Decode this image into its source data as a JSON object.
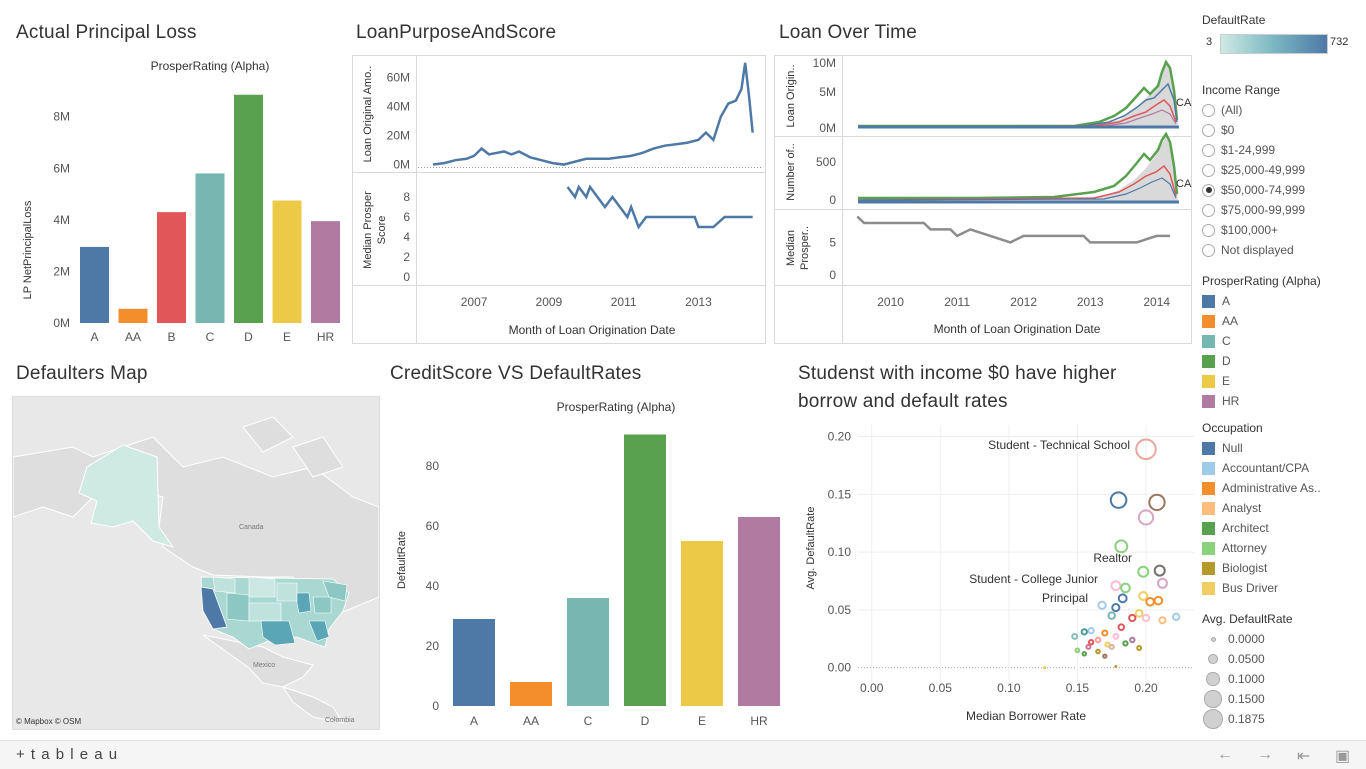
{
  "titles": {
    "principal_loss": "Actual Principal Loss",
    "loan_purpose": "LoanPurposeAndScore",
    "loan_time": "Loan Over Time",
    "map": "Defaulters Map",
    "credit_score": "CreditScore VS DefaultRates",
    "students_line1": "Studenst with income $0  have higher",
    "students_line2": "borrow and default rates"
  },
  "principal_loss_chart": {
    "header": "ProsperRating (Alpha)",
    "ylabel": "LP NetPrincipalLoss",
    "yticks": [
      "0M",
      "2M",
      "4M",
      "6M",
      "8M"
    ]
  },
  "loan_purpose_chart": {
    "ylabel_top": "Loan Original Amo..",
    "ylabel_bottom1": "Median Prosper",
    "ylabel_bottom2": "Score",
    "yticks_top": [
      "0M",
      "20M",
      "40M",
      "60M"
    ],
    "yticks_bottom": [
      "0",
      "2",
      "4",
      "6",
      "8"
    ],
    "xticks": [
      "2007",
      "2009",
      "2011",
      "2013"
    ],
    "xlabel": "Month of Loan Origination Date"
  },
  "loan_time_chart": {
    "ylabel_top": "Loan Origin..",
    "ylabel_mid": "Number of..",
    "ylabel_bot1": "Median",
    "ylabel_bot2": "Prosper..",
    "yticks_top": [
      "0M",
      "5M",
      "10M"
    ],
    "yticks_mid": [
      "0",
      "500"
    ],
    "yticks_bot": [
      "0",
      "5"
    ],
    "xticks": [
      "2010",
      "2011",
      "2012",
      "2013",
      "2014"
    ],
    "xlabel": "Month of Loan Origination Date",
    "label_ca": "CA"
  },
  "map": {
    "label_canada": "Canada",
    "label_mexico": "Mexico",
    "label_colombia": "Colombia",
    "credit": "© Mapbox  © OSM"
  },
  "credit_chart": {
    "header": "ProsperRating (Alpha)",
    "ylabel": "DefaultRate",
    "yticks": [
      "0",
      "20",
      "40",
      "60",
      "80"
    ]
  },
  "student_chart": {
    "ylabel": "Avg. DefaultRate",
    "xlabel": "Median Borrower Rate",
    "yticks": [
      "0.00",
      "0.05",
      "0.10",
      "0.15",
      "0.20"
    ],
    "xticks": [
      "0.00",
      "0.05",
      "0.10",
      "0.15",
      "0.20"
    ],
    "annotations": [
      "Student - Technical School",
      "Realtor",
      "Student - College Junior",
      "Principal"
    ]
  },
  "legend": {
    "defaultrate_title": "DefaultRate",
    "defaultrate_min": "3",
    "defaultrate_max": "732",
    "income_title": "Income Range",
    "income_options": [
      "(All)",
      "$0",
      "$1-24,999",
      "$25,000-49,999",
      "$50,000-74,999",
      "$75,000-99,999",
      "$100,000+",
      "Not displayed"
    ],
    "income_selected": "$50,000-74,999",
    "rating_title": "ProsperRating (Alpha)",
    "rating_items": [
      {
        "label": "A",
        "color": "#4e79a7"
      },
      {
        "label": "AA",
        "color": "#f28e2b"
      },
      {
        "label": "C",
        "color": "#76b7b2"
      },
      {
        "label": "D",
        "color": "#59a14f"
      },
      {
        "label": "E",
        "color": "#edc948"
      },
      {
        "label": "HR",
        "color": "#b07aa1"
      }
    ],
    "occupation_title": "Occupation",
    "occupation_items": [
      {
        "label": "Null",
        "color": "#4e79a7"
      },
      {
        "label": "Accountant/CPA",
        "color": "#a0cbe8"
      },
      {
        "label": "Administrative As..",
        "color": "#f28e2b"
      },
      {
        "label": "Analyst",
        "color": "#ffbe7d"
      },
      {
        "label": "Architect",
        "color": "#59a14f"
      },
      {
        "label": "Attorney",
        "color": "#8cd17d"
      },
      {
        "label": "Biologist",
        "color": "#b6992d"
      },
      {
        "label": "Bus Driver",
        "color": "#f1ce63"
      }
    ],
    "size_title": "Avg. DefaultRate",
    "size_items": [
      "0.0000",
      "0.0500",
      "0.1000",
      "0.1500",
      "0.1875"
    ]
  },
  "footer": {
    "brand": "+ t a b l e a u"
  },
  "chart_data": [
    {
      "type": "bar",
      "title": "Actual Principal Loss",
      "xlabel": "ProsperRating (Alpha)",
      "ylabel": "LP NetPrincipalLoss",
      "categories": [
        "A",
        "AA",
        "B",
        "C",
        "D",
        "E",
        "HR"
      ],
      "values": [
        2.95,
        0.55,
        4.3,
        5.8,
        8.85,
        4.75,
        3.95
      ],
      "colors": [
        "#4e79a7",
        "#f28e2b",
        "#e15759",
        "#76b7b2",
        "#59a14f",
        "#edc948",
        "#b07aa1"
      ],
      "ylim": [
        0,
        9.5
      ],
      "unit": "M"
    },
    {
      "type": "bar",
      "title": "CreditScore VS DefaultRates",
      "xlabel": "ProsperRating (Alpha)",
      "ylabel": "DefaultRate",
      "categories": [
        "A",
        "AA",
        "C",
        "D",
        "E",
        "HR"
      ],
      "values": [
        29,
        8,
        36,
        90.5,
        55,
        63
      ],
      "colors": [
        "#4e79a7",
        "#f28e2b",
        "#76b7b2",
        "#59a14f",
        "#edc948",
        "#b07aa1"
      ],
      "ylim": [
        0,
        92
      ]
    },
    {
      "type": "line",
      "title": "LoanPurposeAndScore",
      "xlabel": "Month of Loan Origination Date",
      "ylabel": "Loan Original Amo..",
      "x": [
        2005.9,
        2006.2,
        2006.5,
        2006.8,
        2007.0,
        2007.2,
        2007.4,
        2007.6,
        2007.8,
        2008.0,
        2008.2,
        2008.5,
        2008.8,
        2009.1,
        2009.4,
        2009.7,
        2010.0,
        2010.3,
        2010.6,
        2010.9,
        2011.2,
        2011.5,
        2011.8,
        2012.1,
        2012.4,
        2012.7,
        2013.0,
        2013.2,
        2013.4,
        2013.6,
        2013.8,
        2014.0,
        2014.15,
        2014.25,
        2014.35,
        2014.45
      ],
      "values": [
        0,
        1,
        3,
        4,
        6,
        11,
        7,
        8,
        9,
        7,
        9,
        5,
        3,
        1,
        0,
        2,
        4,
        4,
        4,
        5,
        6,
        8,
        11,
        13,
        14,
        15,
        17,
        22,
        17,
        33,
        42,
        44,
        52,
        70,
        48,
        22
      ],
      "ylim": [
        -1,
        72
      ]
    },
    {
      "type": "line",
      "title": "LoanPurposeAndScore",
      "ylabel": "Median Prosper Score",
      "x": [
        2009.5,
        2009.7,
        2009.8,
        2010.0,
        2010.1,
        2010.3,
        2010.5,
        2010.7,
        2010.9,
        2011.1,
        2011.2,
        2011.4,
        2011.6,
        2011.8,
        2012.0,
        2012.3,
        2012.6,
        2012.9,
        2013.0,
        2013.4,
        2013.7,
        2014.0,
        2014.2,
        2014.45
      ],
      "values": [
        9,
        8,
        9,
        8,
        9,
        8,
        7,
        8,
        7,
        6,
        7,
        5,
        6,
        6,
        6,
        6,
        6,
        6,
        5,
        5,
        6,
        6,
        6,
        6
      ],
      "ylim": [
        -0.5,
        9.5
      ]
    },
    {
      "type": "line",
      "title": "Loan Over Time",
      "ylabel": "Median Prosper..",
      "x": [
        2009.5,
        2009.6,
        2009.8,
        2010.0,
        2010.2,
        2010.5,
        2010.6,
        2010.9,
        2011.0,
        2011.2,
        2011.5,
        2011.8,
        2012.0,
        2012.3,
        2012.6,
        2012.9,
        2013.0,
        2013.4,
        2013.7,
        2014.0,
        2014.2
      ],
      "values": [
        9,
        8,
        8,
        8,
        8,
        8,
        7,
        7,
        6,
        7,
        6,
        5,
        6,
        6,
        6,
        6,
        5,
        5,
        5,
        6,
        6
      ],
      "ylim": [
        -0.5,
        10
      ]
    },
    {
      "type": "scatter",
      "title": "Studenst with income $0  have higher borrow and default rates",
      "xlabel": "Median Borrower Rate",
      "ylabel": "Avg. DefaultRate",
      "xlim": [
        -0.01,
        0.235
      ],
      "ylim": [
        -0.015,
        0.21
      ],
      "points": [
        {
          "x": 0.2,
          "y": 0.189,
          "s": 0.189,
          "c": "#e8a89e"
        },
        {
          "x": 0.18,
          "y": 0.145,
          "s": 0.145,
          "c": "#4e79a7"
        },
        {
          "x": 0.208,
          "y": 0.143,
          "s": 0.143,
          "c": "#9c755f"
        },
        {
          "x": 0.2,
          "y": 0.13,
          "s": 0.13,
          "c": "#d4a6c8"
        },
        {
          "x": 0.182,
          "y": 0.105,
          "s": 0.105,
          "c": "#8cd17d"
        },
        {
          "x": 0.21,
          "y": 0.084,
          "s": 0.084,
          "c": "#79706e"
        },
        {
          "x": 0.198,
          "y": 0.083,
          "s": 0.083,
          "c": "#8cd17d"
        },
        {
          "x": 0.178,
          "y": 0.071,
          "s": 0.071,
          "c": "#fabfd2"
        },
        {
          "x": 0.185,
          "y": 0.069,
          "s": 0.069,
          "c": "#8cd17d"
        },
        {
          "x": 0.212,
          "y": 0.073,
          "s": 0.073,
          "c": "#d4a6c8"
        },
        {
          "x": 0.198,
          "y": 0.062,
          "s": 0.062,
          "c": "#f1ce63"
        },
        {
          "x": 0.203,
          "y": 0.057,
          "s": 0.057,
          "c": "#f28e2b"
        },
        {
          "x": 0.209,
          "y": 0.058,
          "s": 0.058,
          "c": "#f28e2b"
        },
        {
          "x": 0.183,
          "y": 0.06,
          "s": 0.06,
          "c": "#4e79a7"
        },
        {
          "x": 0.178,
          "y": 0.052,
          "s": 0.052,
          "c": "#4e79a7"
        },
        {
          "x": 0.168,
          "y": 0.054,
          "s": 0.054,
          "c": "#a0cbe8"
        },
        {
          "x": 0.19,
          "y": 0.043,
          "s": 0.043,
          "c": "#e15759"
        },
        {
          "x": 0.195,
          "y": 0.047,
          "s": 0.047,
          "c": "#f1ce63"
        },
        {
          "x": 0.2,
          "y": 0.043,
          "s": 0.043,
          "c": "#fabfd2"
        },
        {
          "x": 0.212,
          "y": 0.041,
          "s": 0.041,
          "c": "#ffbe7d"
        },
        {
          "x": 0.222,
          "y": 0.044,
          "s": 0.044,
          "c": "#a0cbe8"
        },
        {
          "x": 0.175,
          "y": 0.045,
          "s": 0.045,
          "c": "#76b7b2"
        },
        {
          "x": 0.182,
          "y": 0.035,
          "s": 0.035,
          "c": "#e15759"
        },
        {
          "x": 0.17,
          "y": 0.03,
          "s": 0.03,
          "c": "#f28e2b"
        },
        {
          "x": 0.16,
          "y": 0.032,
          "s": 0.032,
          "c": "#a0cbe8"
        },
        {
          "x": 0.178,
          "y": 0.027,
          "s": 0.027,
          "c": "#fabfd2"
        },
        {
          "x": 0.155,
          "y": 0.031,
          "s": 0.031,
          "c": "#499894"
        },
        {
          "x": 0.148,
          "y": 0.027,
          "s": 0.027,
          "c": "#86bcb6"
        },
        {
          "x": 0.165,
          "y": 0.024,
          "s": 0.024,
          "c": "#ff9d9a"
        },
        {
          "x": 0.19,
          "y": 0.024,
          "s": 0.024,
          "c": "#b07aa1"
        },
        {
          "x": 0.16,
          "y": 0.022,
          "s": 0.022,
          "c": "#e15759"
        },
        {
          "x": 0.172,
          "y": 0.02,
          "s": 0.02,
          "c": "#f1ce63"
        },
        {
          "x": 0.185,
          "y": 0.021,
          "s": 0.021,
          "c": "#59a14f"
        },
        {
          "x": 0.158,
          "y": 0.018,
          "s": 0.018,
          "c": "#d37295"
        },
        {
          "x": 0.15,
          "y": 0.015,
          "s": 0.015,
          "c": "#8cd17d"
        },
        {
          "x": 0.165,
          "y": 0.014,
          "s": 0.014,
          "c": "#b6992d"
        },
        {
          "x": 0.195,
          "y": 0.017,
          "s": 0.017,
          "c": "#b6992d"
        },
        {
          "x": 0.155,
          "y": 0.012,
          "s": 0.012,
          "c": "#59a14f"
        },
        {
          "x": 0.17,
          "y": 0.01,
          "s": 0.01,
          "c": "#9d7660"
        },
        {
          "x": 0.175,
          "y": 0.018,
          "s": 0.018,
          "c": "#d7b5a6"
        },
        {
          "x": 0.126,
          "y": 0.0,
          "s": 0.0,
          "c": "#edc948"
        },
        {
          "x": 0.178,
          "y": 0.001,
          "s": 0.0,
          "c": "#b6992d"
        }
      ]
    }
  ]
}
